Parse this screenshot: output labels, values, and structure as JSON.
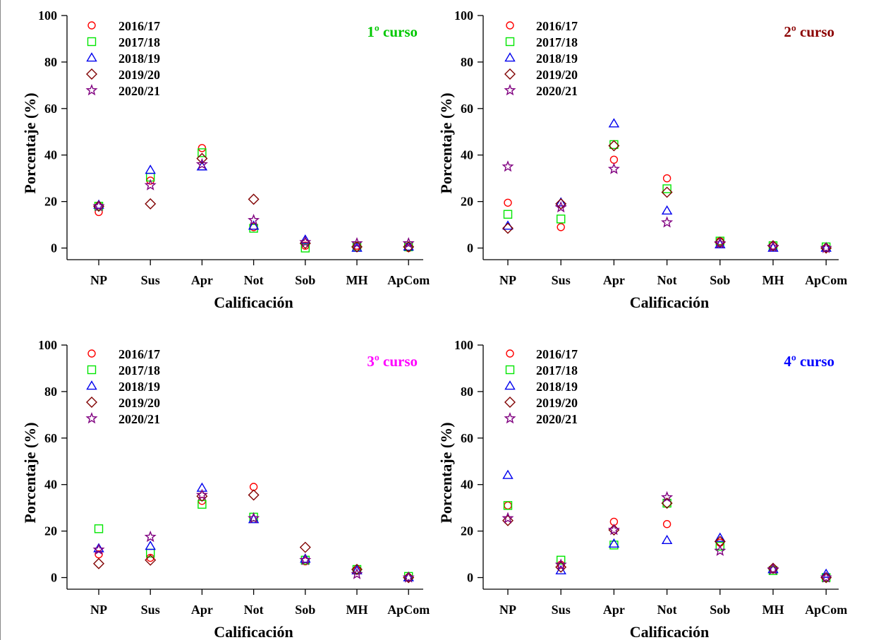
{
  "chart_data": [
    {
      "type": "scatter",
      "panel_label": "1º curso",
      "panel_label_color": "#00c800",
      "xlabel": "Calificación",
      "ylabel": "Porcentaje (%)",
      "categories": [
        "NP",
        "Sus",
        "Apr",
        "Not",
        "Sob",
        "MH",
        "ApCom"
      ],
      "ylim": [
        -5,
        100
      ],
      "yticks": [
        "0",
        "20",
        "40",
        "60",
        "80",
        "100"
      ],
      "legend_position": "top-left",
      "series": [
        {
          "name": "2016/17",
          "marker": "circle",
          "color": "#ff0000",
          "values": [
            15.5,
            29,
            43,
            9,
            1,
            1,
            0
          ]
        },
        {
          "name": "2017/18",
          "marker": "square",
          "color": "#00e600",
          "values": [
            18,
            30.5,
            41,
            8.5,
            0,
            0.5,
            0.5
          ]
        },
        {
          "name": "2018/19",
          "marker": "triangle",
          "color": "#0000ee",
          "values": [
            18.5,
            33.5,
            35,
            9.5,
            3.5,
            0,
            0.5
          ]
        },
        {
          "name": "2019/20",
          "marker": "diamond",
          "color": "#800000",
          "values": [
            18,
            19,
            38.5,
            21,
            2,
            0.5,
            0.5
          ]
        },
        {
          "name": "2020/21",
          "marker": "star",
          "color": "#800080",
          "values": [
            18,
            27,
            36,
            12,
            2.5,
            2,
            2
          ]
        }
      ]
    },
    {
      "type": "scatter",
      "panel_label": "2º curso",
      "panel_label_color": "#8b0000",
      "xlabel": "Calificación",
      "ylabel": "Porcentaje (%)",
      "categories": [
        "NP",
        "Sus",
        "Apr",
        "Not",
        "Sob",
        "MH",
        "ApCom"
      ],
      "ylim": [
        -5,
        100
      ],
      "yticks": [
        "0",
        "20",
        "40",
        "60",
        "80",
        "100"
      ],
      "legend_position": "top-left",
      "series": [
        {
          "name": "2016/17",
          "marker": "circle",
          "color": "#ff0000",
          "values": [
            19.5,
            9,
            38,
            30,
            3,
            1,
            0
          ]
        },
        {
          "name": "2017/18",
          "marker": "square",
          "color": "#00e600",
          "values": [
            14.5,
            12.5,
            44.5,
            25.5,
            3,
            1,
            0.5
          ]
        },
        {
          "name": "2018/19",
          "marker": "triangle",
          "color": "#0000ee",
          "values": [
            9.5,
            19.5,
            53.5,
            16,
            1.5,
            0,
            0
          ]
        },
        {
          "name": "2019/20",
          "marker": "diamond",
          "color": "#800000",
          "values": [
            8.5,
            19,
            44,
            24,
            2.5,
            1,
            0
          ]
        },
        {
          "name": "2020/21",
          "marker": "star",
          "color": "#800080",
          "values": [
            35,
            17.5,
            34,
            11,
            2,
            0.5,
            0
          ]
        }
      ]
    },
    {
      "type": "scatter",
      "panel_label": "3º curso",
      "panel_label_color": "#ff00ff",
      "xlabel": "Calificación",
      "ylabel": "Porcentaje (%)",
      "categories": [
        "NP",
        "Sus",
        "Apr",
        "Not",
        "Sob",
        "MH",
        "ApCom"
      ],
      "ylim": [
        -5,
        100
      ],
      "yticks": [
        "0",
        "20",
        "40",
        "60",
        "80",
        "100"
      ],
      "legend_position": "top-left",
      "series": [
        {
          "name": "2016/17",
          "marker": "circle",
          "color": "#ff0000",
          "values": [
            10,
            8.5,
            33,
            39,
            7,
            3,
            0
          ]
        },
        {
          "name": "2017/18",
          "marker": "square",
          "color": "#00e600",
          "values": [
            21,
            10.5,
            31.5,
            26,
            7.5,
            3.5,
            0.5
          ]
        },
        {
          "name": "2018/19",
          "marker": "triangle",
          "color": "#0000ee",
          "values": [
            12.5,
            13.5,
            38.5,
            25,
            8,
            3,
            0
          ]
        },
        {
          "name": "2019/20",
          "marker": "diamond",
          "color": "#800000",
          "values": [
            6,
            7.5,
            35,
            35.5,
            13,
            3.5,
            0
          ]
        },
        {
          "name": "2020/21",
          "marker": "star",
          "color": "#800080",
          "values": [
            12,
            17.5,
            35.5,
            25.5,
            7.5,
            1.5,
            0
          ]
        }
      ]
    },
    {
      "type": "scatter",
      "panel_label": "4º curso",
      "panel_label_color": "#0000ff",
      "xlabel": "Calificación",
      "ylabel": "Porcentaje (%)",
      "categories": [
        "NP",
        "Sus",
        "Apr",
        "Not",
        "Sob",
        "MH",
        "ApCom"
      ],
      "ylim": [
        -5,
        100
      ],
      "yticks": [
        "0",
        "20",
        "40",
        "60",
        "80",
        "100"
      ],
      "legend_position": "top-left",
      "series": [
        {
          "name": "2016/17",
          "marker": "circle",
          "color": "#ff0000",
          "values": [
            31,
            5.5,
            24,
            23,
            15,
            3.5,
            0
          ]
        },
        {
          "name": "2017/18",
          "marker": "square",
          "color": "#00e600",
          "values": [
            31,
            7.5,
            14,
            32,
            13.5,
            3,
            0
          ]
        },
        {
          "name": "2018/19",
          "marker": "triangle",
          "color": "#0000ee",
          "values": [
            44,
            3,
            14.5,
            16,
            17,
            3.5,
            1.5
          ]
        },
        {
          "name": "2019/20",
          "marker": "diamond",
          "color": "#800000",
          "values": [
            24.5,
            4.5,
            20.5,
            32,
            15.5,
            4,
            0
          ]
        },
        {
          "name": "2020/21",
          "marker": "star",
          "color": "#800080",
          "values": [
            25.5,
            5.5,
            20.5,
            34.5,
            11.5,
            3.5,
            0
          ]
        }
      ]
    }
  ]
}
